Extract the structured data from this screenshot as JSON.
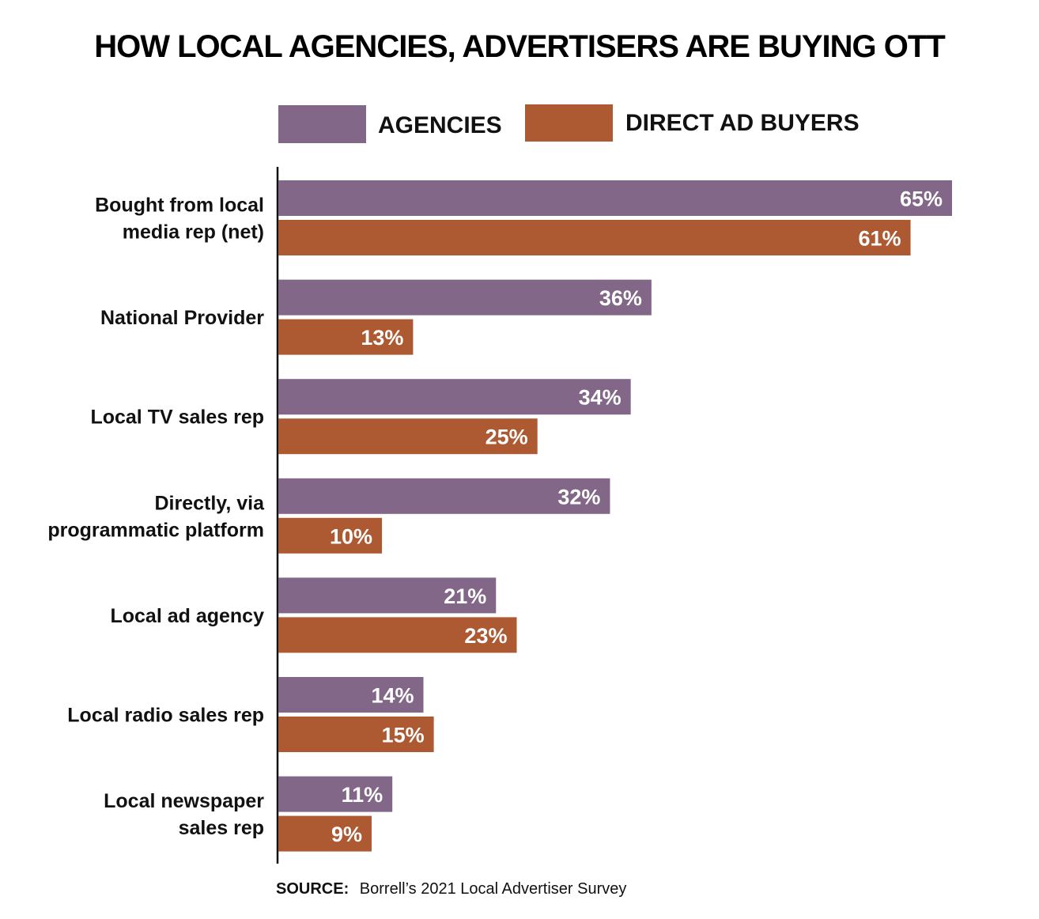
{
  "chart_data": {
    "type": "bar",
    "orientation": "horizontal",
    "title": "HOW LOCAL AGENCIES, ADVERTISERS ARE BUYING OTT",
    "categories": [
      [
        "Bought from local",
        "media rep (net)"
      ],
      [
        "National Provider"
      ],
      [
        "Local TV sales rep"
      ],
      [
        "Directly, via",
        "programmatic platform"
      ],
      [
        "Local ad agency"
      ],
      [
        "Local radio sales rep"
      ],
      [
        "Local newspaper",
        "sales rep"
      ]
    ],
    "series": [
      {
        "name": "AGENCIES",
        "color": "#836788",
        "values": [
          65,
          36,
          34,
          32,
          21,
          14,
          11
        ],
        "labels": [
          "65%",
          "36%",
          "34%",
          "32%",
          "21%",
          "14%",
          "11%"
        ]
      },
      {
        "name": "DIRECT AD BUYERS",
        "color": "#AD5A33",
        "values": [
          61,
          13,
          25,
          10,
          23,
          15,
          9
        ],
        "labels": [
          "61%",
          "13%",
          "25%",
          "10%",
          "23%",
          "15%",
          "9%"
        ]
      }
    ],
    "unit": "%",
    "xlim": [
      0,
      65
    ],
    "grid": false,
    "legend_position": "top"
  },
  "source": {
    "label": "SOURCE:",
    "text": "Borrell’s 2021 Local Advertiser Survey"
  }
}
